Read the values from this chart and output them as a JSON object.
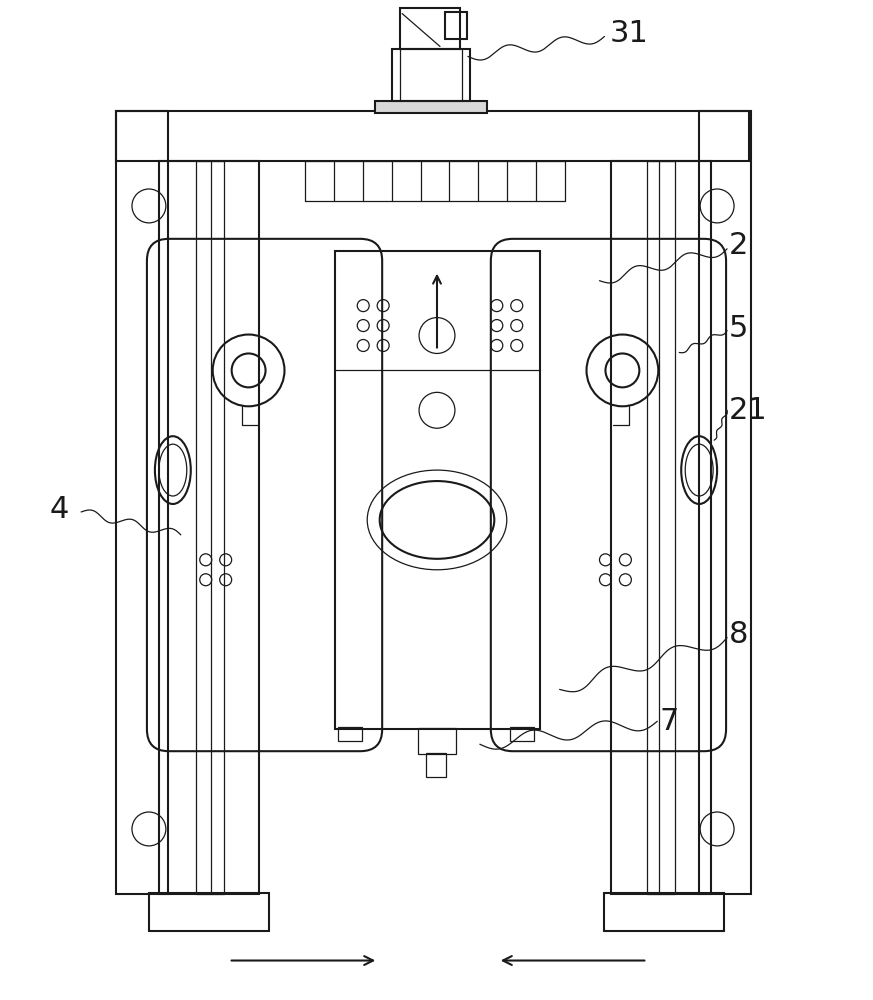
{
  "bg_color": "#ffffff",
  "line_color": "#1a1a1a",
  "lw": 1.5,
  "tlw": 0.9,
  "dot_r": 0.006,
  "fs": 20
}
